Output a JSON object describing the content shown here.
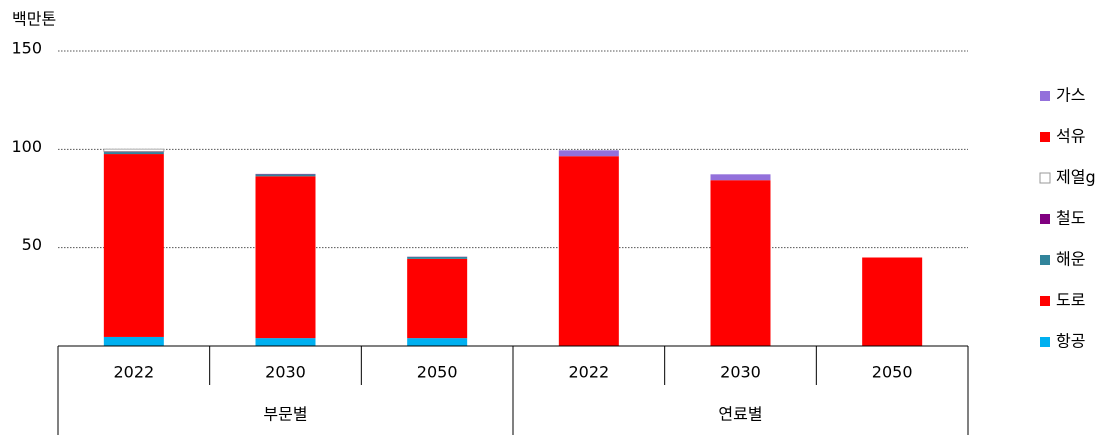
{
  "chart_data": {
    "type": "stacked-bar",
    "unit_label": "백만톤",
    "categories": [
      "2022",
      "2030",
      "2050",
      "2022",
      "2030",
      "2050"
    ],
    "groups": [
      "부문별",
      "연료별"
    ],
    "series": [
      {
        "name": "항공",
        "color": "#00b0f0",
        "values": [
          4.6,
          4,
          4,
          null,
          null,
          null
        ]
      },
      {
        "name": "도로",
        "color": "#ff0000",
        "values": [
          93,
          82.3,
          40.3,
          null,
          null,
          null
        ]
      },
      {
        "name": "해운",
        "color": "#31849b",
        "values": [
          1,
          1,
          1,
          null,
          null,
          null
        ]
      },
      {
        "name": "철도",
        "color": "#800080",
        "values": [
          0.3,
          0.2,
          0.1,
          null,
          null,
          null
        ]
      },
      {
        "name": "제열g",
        "color": "#ffffff",
        "values": [
          1.2,
          null,
          null,
          null,
          null,
          null
        ]
      },
      {
        "name": "석유",
        "color": "#ff0000",
        "values": [
          null,
          null,
          null,
          96.5,
          84.3,
          45
        ]
      },
      {
        "name": "가스",
        "color": "#9370db",
        "values": [
          null,
          null,
          null,
          3,
          3,
          null
        ]
      }
    ],
    "ylim": [
      0,
      150
    ],
    "yticks": [
      50,
      100,
      150
    ],
    "grid": true,
    "legend": "right"
  }
}
